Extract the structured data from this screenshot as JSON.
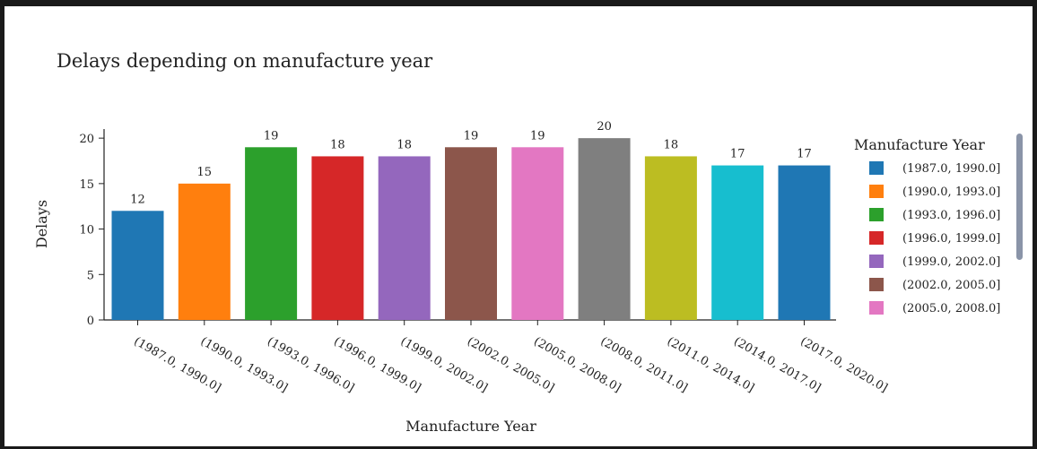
{
  "chart_data": {
    "type": "bar",
    "title": "Delays depending on manufacture year",
    "xlabel": "Manufacture Year",
    "ylabel": "Delays",
    "ylim": [
      0,
      21
    ],
    "yticks": [
      "0",
      "5",
      "10",
      "15",
      "20"
    ],
    "ytick_values": [
      0,
      5,
      10,
      15,
      20
    ],
    "categories": [
      "(1987.0, 1990.0]",
      "(1990.0, 1993.0]",
      "(1993.0, 1996.0]",
      "(1996.0, 1999.0]",
      "(1999.0, 2002.0]",
      "(2002.0, 2005.0]",
      "(2005.0, 2008.0]",
      "(2008.0, 2011.0]",
      "(2011.0, 2014.0]",
      "(2014.0, 2017.0]",
      "(2017.0, 2020.0]"
    ],
    "values": [
      12,
      15,
      19,
      18,
      18,
      19,
      19,
      20,
      18,
      17,
      17
    ],
    "colors": [
      "#1f77b4",
      "#ff7f0e",
      "#2ca02c",
      "#d62728",
      "#9467bd",
      "#8c564b",
      "#e377c2",
      "#7f7f7f",
      "#bcbd22",
      "#17becf",
      "#1f77b4"
    ],
    "legend": {
      "title": "Manufacture Year",
      "placement": "right",
      "entries": [
        {
          "label": "(1987.0, 1990.0]",
          "color": "#1f77b4"
        },
        {
          "label": "(1990.0, 1993.0]",
          "color": "#ff7f0e"
        },
        {
          "label": "(1993.0, 1996.0]",
          "color": "#2ca02c"
        },
        {
          "label": "(1996.0, 1999.0]",
          "color": "#d62728"
        },
        {
          "label": "(1999.0, 2002.0]",
          "color": "#9467bd"
        },
        {
          "label": "(2002.0, 2005.0]",
          "color": "#8c564b"
        },
        {
          "label": "(2005.0, 2008.0]",
          "color": "#e377c2"
        }
      ]
    },
    "grid": false
  }
}
